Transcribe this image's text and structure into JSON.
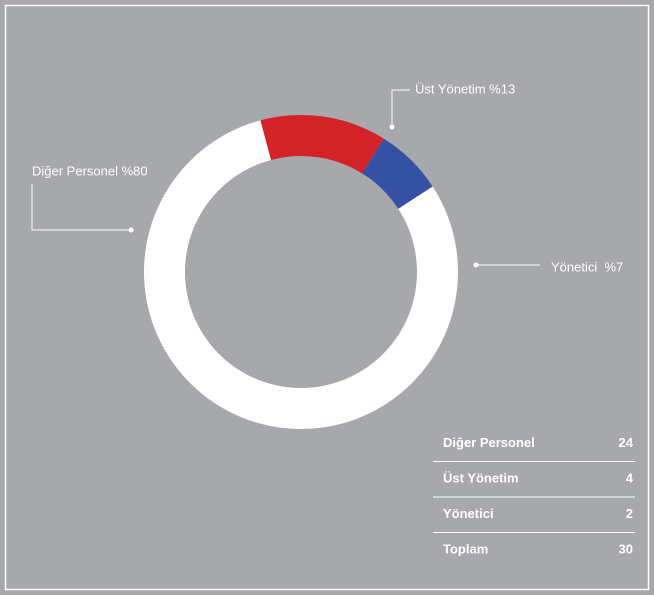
{
  "chart_data": {
    "type": "donut",
    "labels": [
      "Üst Yönetim %13",
      "Yönetici  %7",
      "Diğer Personel %80"
    ],
    "values": [
      13,
      7,
      80
    ],
    "colors": [
      "#d42229",
      "#3451a4",
      "#ffffff"
    ]
  },
  "table": {
    "rows": [
      [
        "Diğer Personel",
        24
      ],
      [
        "Üst Yönetim",
        4
      ],
      [
        "Yönetici",
        2
      ],
      [
        "Toplam",
        30
      ]
    ]
  }
}
